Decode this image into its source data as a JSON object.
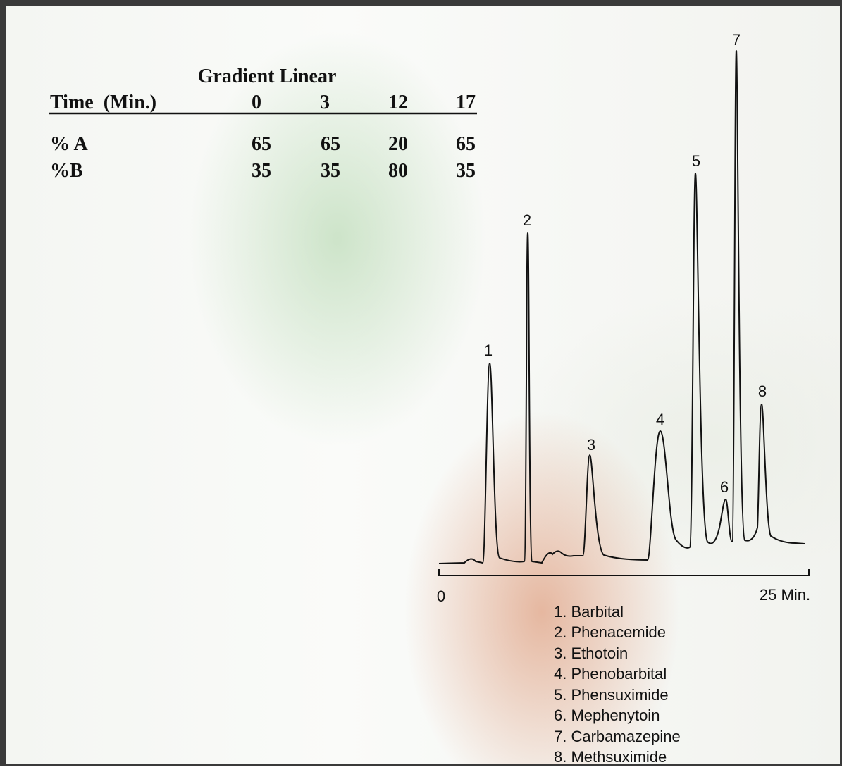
{
  "table": {
    "title": "Gradient Linear",
    "header": [
      "Time  (Min.)",
      "0",
      "3",
      "12",
      "17"
    ],
    "rows": [
      [
        "% A",
        "65",
        "65",
        "20",
        "65"
      ],
      [
        "%B",
        "35",
        "35",
        "80",
        "35"
      ]
    ]
  },
  "chromatogram": {
    "peak_labels": [
      "1",
      "2",
      "3",
      "4",
      "5",
      "6",
      "7",
      "8"
    ],
    "axis_start": "0",
    "axis_end": "25 Min."
  },
  "legend": [
    "1. Barbital",
    "2. Phenacemide",
    "3. Ethotoin",
    "4. Phenobarbital",
    "5. Phensuximide",
    "6. Mephenytoin",
    "7. Carbamazepine",
    "8. Methsuximide"
  ]
}
